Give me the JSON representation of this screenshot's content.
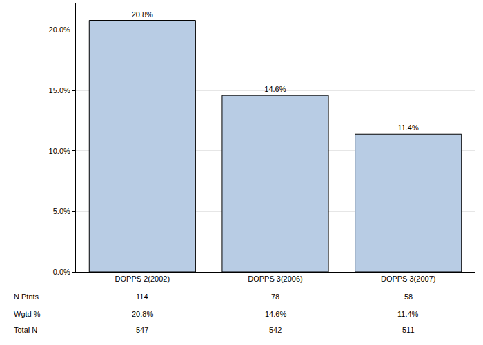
{
  "chart_data": {
    "type": "bar",
    "categories": [
      "DOPPS 2(2002)",
      "DOPPS 3(2006)",
      "DOPPS 3(2007)"
    ],
    "values": [
      20.8,
      14.6,
      11.4
    ],
    "value_labels": [
      "20.8%",
      "14.6%",
      "11.4%"
    ],
    "color": "#b8cce4",
    "ylim": [
      0,
      22.2
    ],
    "yticks": [
      {
        "value": 0,
        "label": "0.0%"
      },
      {
        "value": 5,
        "label": "5.0%"
      },
      {
        "value": 10,
        "label": "10.0%"
      },
      {
        "value": 15,
        "label": "15.0%"
      },
      {
        "value": 20,
        "label": "20.0%"
      }
    ],
    "grid": true,
    "data_labels": true
  },
  "table": {
    "rows": [
      {
        "label": "N Ptnts",
        "values": [
          114,
          78,
          58
        ]
      },
      {
        "label": "Wgtd %",
        "values": [
          "20.8%",
          "14.6%",
          "11.4%"
        ]
      },
      {
        "label": "Total N",
        "values": [
          547,
          542,
          511
        ]
      }
    ]
  }
}
